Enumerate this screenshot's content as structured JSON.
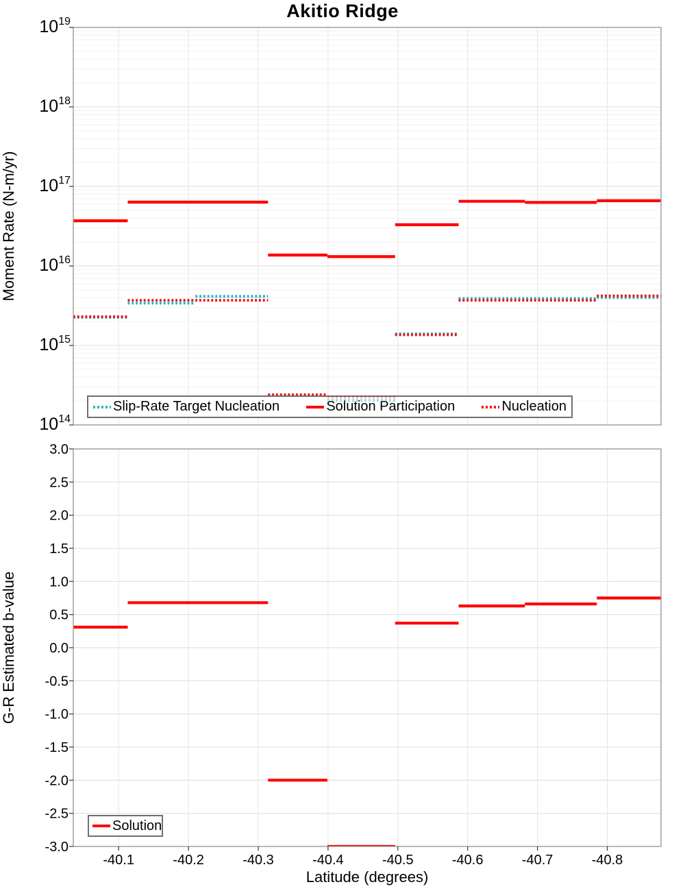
{
  "title": "Akitio Ridge",
  "colors": {
    "solution": "#ff0000",
    "nucleation": "#f01414",
    "slip_rate_target": "#26b8c6",
    "grid_minor": "#f0f0f0",
    "grid_major": "#dcdcdc",
    "grid_vertical": "#e4e4e4",
    "panel_border": "#999999",
    "tick_mark": "#333333",
    "legend_border": "#6f6f6f"
  },
  "chart_data": [
    {
      "type": "line",
      "title": "Akitio Ridge",
      "ylabel": "Moment Rate (N-m/yr)",
      "yscale": "log",
      "ylim": [
        100000000000000.0,
        1e+19
      ],
      "ytick_base": "10",
      "ytick_exponents": [
        19,
        18,
        17,
        16,
        15,
        14
      ],
      "xlim": [
        -40.035,
        -40.877
      ],
      "xticks": [
        -40.1,
        -40.2,
        -40.3,
        -40.4,
        -40.5,
        -40.6,
        -40.7,
        -40.8
      ],
      "xtick_labels": [
        "-40.1",
        "-40.2",
        "-40.3",
        "-40.4",
        "-40.5",
        "-40.6",
        "-40.7",
        "-40.8"
      ],
      "grid": true,
      "legend_position": "inside-bottom-left",
      "series": [
        {
          "name": "Slip-Rate Target Nucleation",
          "style": "dotted",
          "color_key": "slip_rate_target",
          "segments": [
            {
              "x0": -40.035,
              "x1": -40.113,
              "y": 2250000000000000.0
            },
            {
              "x0": -40.113,
              "x1": -40.21,
              "y": 3400000000000000.0
            },
            {
              "x0": -40.21,
              "x1": -40.314,
              "y": 4150000000000000.0
            },
            {
              "x0": -40.314,
              "x1": -40.399,
              "y": 230000000000000.0
            },
            {
              "x0": -40.399,
              "x1": -40.496,
              "y": 205000000000000.0
            },
            {
              "x0": -40.496,
              "x1": -40.587,
              "y": 1400000000000000.0
            },
            {
              "x0": -40.587,
              "x1": -40.785,
              "y": 3900000000000000.0
            },
            {
              "x0": -40.785,
              "x1": -40.877,
              "y": 4000000000000000.0
            }
          ]
        },
        {
          "name": "Nucleation",
          "style": "dotted",
          "color_key": "nucleation",
          "segments": [
            {
              "x0": -40.035,
              "x1": -40.113,
              "y": 2300000000000000.0
            },
            {
              "x0": -40.113,
              "x1": -40.314,
              "y": 3700000000000000.0
            },
            {
              "x0": -40.314,
              "x1": -40.399,
              "y": 240000000000000.0
            },
            {
              "x0": -40.399,
              "x1": -40.496,
              "y": 225000000000000.0
            },
            {
              "x0": -40.496,
              "x1": -40.587,
              "y": 1360000000000000.0
            },
            {
              "x0": -40.587,
              "x1": -40.785,
              "y": 3700000000000000.0
            },
            {
              "x0": -40.785,
              "x1": -40.877,
              "y": 4200000000000000.0
            }
          ]
        },
        {
          "name": "Solution Participation",
          "style": "solid",
          "color_key": "solution",
          "segments": [
            {
              "x0": -40.035,
              "x1": -40.113,
              "y": 3.7e+16
            },
            {
              "x0": -40.113,
              "x1": -40.314,
              "y": 6.35e+16
            },
            {
              "x0": -40.314,
              "x1": -40.399,
              "y": 1.37e+16
            },
            {
              "x0": -40.399,
              "x1": -40.496,
              "y": 1.31e+16
            },
            {
              "x0": -40.496,
              "x1": -40.587,
              "y": 3.3e+16
            },
            {
              "x0": -40.587,
              "x1": -40.682,
              "y": 6.5e+16
            },
            {
              "x0": -40.682,
              "x1": -40.785,
              "y": 6.3e+16
            },
            {
              "x0": -40.785,
              "x1": -40.877,
              "y": 6.6e+16
            }
          ]
        }
      ]
    },
    {
      "type": "line",
      "ylabel": "G-R Estimated b-value",
      "xlabel": "Latitude (degrees)",
      "ylim": [
        -3.0,
        3.0
      ],
      "yticks": [
        3.0,
        2.5,
        2.0,
        1.5,
        1.0,
        0.5,
        0.0,
        -0.5,
        -1.0,
        -1.5,
        -2.0,
        -2.5,
        -3.0
      ],
      "ytick_labels": [
        "3.0",
        "2.5",
        "2.0",
        "1.5",
        "1.0",
        "0.5",
        "0.0",
        "-0.5",
        "-1.0",
        "-1.5",
        "-2.0",
        "-2.5",
        "-3.0"
      ],
      "xlim": [
        -40.035,
        -40.877
      ],
      "xticks": [
        -40.1,
        -40.2,
        -40.3,
        -40.4,
        -40.5,
        -40.6,
        -40.7,
        -40.8
      ],
      "xtick_labels": [
        "-40.1",
        "-40.2",
        "-40.3",
        "-40.4",
        "-40.5",
        "-40.6",
        "-40.7",
        "-40.8"
      ],
      "grid": true,
      "legend_position": "inside-bottom-left",
      "series": [
        {
          "name": "Solution",
          "style": "solid",
          "color_key": "solution",
          "segments": [
            {
              "x0": -40.035,
              "x1": -40.113,
              "y": 0.31
            },
            {
              "x0": -40.113,
              "x1": -40.314,
              "y": 0.68
            },
            {
              "x0": -40.314,
              "x1": -40.399,
              "y": -2.0
            },
            {
              "x0": -40.399,
              "x1": -40.496,
              "y": -3.0
            },
            {
              "x0": -40.496,
              "x1": -40.587,
              "y": 0.37
            },
            {
              "x0": -40.587,
              "x1": -40.682,
              "y": 0.63
            },
            {
              "x0": -40.682,
              "x1": -40.785,
              "y": 0.66
            },
            {
              "x0": -40.785,
              "x1": -40.877,
              "y": 0.75
            }
          ]
        }
      ]
    }
  ]
}
